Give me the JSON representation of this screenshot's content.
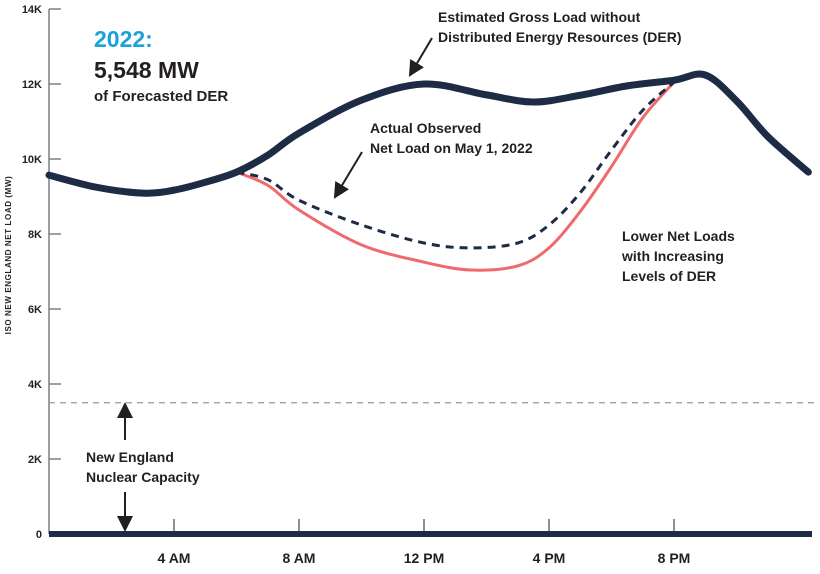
{
  "chart_data": {
    "type": "line",
    "title": "",
    "xlabel": "",
    "ylabel": "ISO NEW ENGLAND NET LOAD (MW)",
    "xlim": [
      0,
      24.3
    ],
    "ylim": [
      0,
      14000
    ],
    "grid": false,
    "x_ticks": [
      {
        "x": 4,
        "label": "4 AM"
      },
      {
        "x": 8,
        "label": "8 AM"
      },
      {
        "x": 12,
        "label": "12 PM"
      },
      {
        "x": 16,
        "label": "4 PM"
      },
      {
        "x": 20,
        "label": "8 PM"
      }
    ],
    "y_ticks": [
      {
        "y": 0,
        "label": "0"
      },
      {
        "y": 2000,
        "label": "2K"
      },
      {
        "y": 4000,
        "label": "4K"
      },
      {
        "y": 6000,
        "label": "6K"
      },
      {
        "y": 8000,
        "label": "8K"
      },
      {
        "y": 10000,
        "label": "10K"
      },
      {
        "y": 12000,
        "label": "12K"
      },
      {
        "y": 14000,
        "label": "14K"
      }
    ],
    "series": [
      {
        "name": "Estimated Gross Load without Distributed Energy Resources (DER)",
        "style": "solid-thick",
        "color": "#1d2b45",
        "x": [
          0,
          1.5,
          3,
          4,
          5,
          6,
          7,
          8,
          10,
          12,
          14,
          15.5,
          17,
          18.5,
          20,
          21,
          22,
          23,
          24.3
        ],
        "y": [
          9570,
          9250,
          9090,
          9170,
          9380,
          9650,
          10100,
          10690,
          11570,
          12000,
          11710,
          11520,
          11700,
          11950,
          12100,
          12240,
          11550,
          10600,
          9650
        ]
      },
      {
        "name": "Actual Observed Net Load on May 1, 2022",
        "style": "dashed",
        "color": "#1d2b45",
        "x": [
          6,
          7,
          8,
          10,
          12,
          13.5,
          15,
          16,
          17,
          18,
          19,
          20
        ],
        "y": [
          9650,
          9450,
          8900,
          8240,
          7760,
          7630,
          7760,
          8240,
          9100,
          10240,
          11300,
          12050
        ]
      },
      {
        "name": "Lower Net Loads with Increasing Levels of DER",
        "style": "solid",
        "color": "#f0696b",
        "x": [
          6,
          7,
          8,
          10,
          12,
          13.5,
          15,
          16,
          17,
          18,
          19,
          20
        ],
        "y": [
          9650,
          9300,
          8640,
          7710,
          7250,
          7040,
          7150,
          7630,
          8600,
          9800,
          11100,
          12050
        ]
      }
    ],
    "reference_lines": [
      {
        "y": 3500,
        "label": "New England Nuclear Capacity",
        "style": "dashed",
        "color": "#9a9a9a"
      }
    ],
    "annotations": {
      "year": "2022:",
      "der_value": "5,548 MW",
      "der_caption": "of Forecasted DER",
      "gross_line1": "Estimated Gross Load without",
      "gross_line2": "Distributed Energy Resources (DER)",
      "observed_line1": "Actual Observed",
      "observed_line2": "Net Load on May 1, 2022",
      "lower_line1": "Lower Net Loads",
      "lower_line2": "with Increasing",
      "lower_line3": "Levels of DER",
      "nuclear_line1": "New England",
      "nuclear_line2": "Nuclear Capacity"
    },
    "colors": {
      "accent": "#1aa3d9",
      "dark": "#1d2b45",
      "red": "#f0696b"
    }
  }
}
